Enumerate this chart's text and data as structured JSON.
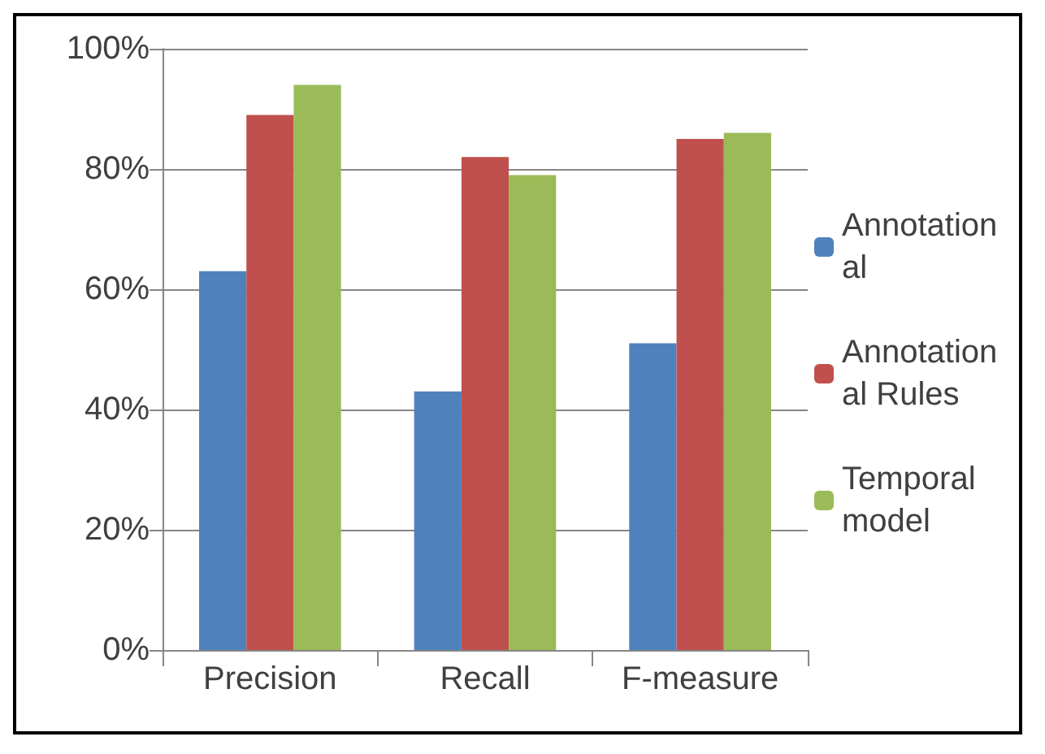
{
  "chart_data": {
    "type": "bar",
    "categories": [
      "Precision",
      "Recall",
      "F-measure"
    ],
    "series": [
      {
        "name": "Annotational",
        "color": "#4f81bd",
        "values": [
          63,
          43,
          51
        ]
      },
      {
        "name": "Annotational Rules",
        "color": "#c0504d",
        "values": [
          89,
          82,
          85
        ]
      },
      {
        "name": "Temporal model",
        "color": "#9bbb59",
        "values": [
          94,
          79,
          86
        ]
      }
    ],
    "ylim": [
      0,
      100
    ],
    "yticks": [
      {
        "value": 0,
        "label": "0%"
      },
      {
        "value": 20,
        "label": "20%"
      },
      {
        "value": 40,
        "label": "40%"
      },
      {
        "value": 60,
        "label": "60%"
      },
      {
        "value": 80,
        "label": "80%"
      },
      {
        "value": 100,
        "label": "100%"
      }
    ],
    "grid": "y",
    "legend": "right"
  }
}
